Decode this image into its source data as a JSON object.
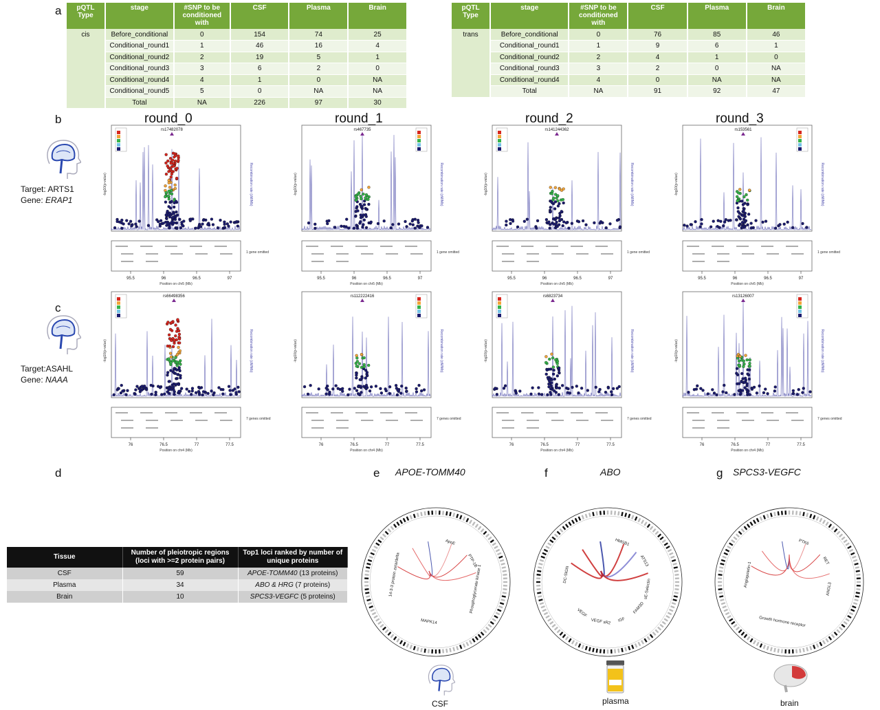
{
  "panel_letters": {
    "a": "a",
    "b": "b",
    "c": "c",
    "d": "d",
    "e": "e",
    "f": "f",
    "g": "g"
  },
  "cis_table": {
    "headers": [
      "pQTL Type",
      "stage",
      "#SNP to be conditioned with",
      "CSF",
      "Plasma",
      "Brain"
    ],
    "type_label": "cis",
    "rows": [
      [
        "Before_conditional",
        "0",
        "154",
        "74",
        "25"
      ],
      [
        "Conditional_round1",
        "1",
        "46",
        "16",
        "4"
      ],
      [
        "Conditional_round2",
        "2",
        "19",
        "5",
        "1"
      ],
      [
        "Conditional_round3",
        "3",
        "6",
        "2",
        "0"
      ],
      [
        "Conditional_round4",
        "4",
        "1",
        "0",
        "NA"
      ],
      [
        "Conditional_round5",
        "5",
        "0",
        "NA",
        "NA"
      ],
      [
        "Total",
        "NA",
        "226",
        "97",
        "30"
      ]
    ]
  },
  "trans_table": {
    "headers": [
      "pQTL Type",
      "stage",
      "#SNP to be conditioned with",
      "CSF",
      "Plasma",
      "Brain"
    ],
    "type_label": "trans",
    "rows": [
      [
        "Before_conditional",
        "0",
        "76",
        "85",
        "46"
      ],
      [
        "Conditional_round1",
        "1",
        "9",
        "6",
        "1"
      ],
      [
        "Conditional_round2",
        "2",
        "4",
        "1",
        "0"
      ],
      [
        "Conditional_round3",
        "3",
        "2",
        "0",
        "NA"
      ],
      [
        "Conditional_round4",
        "4",
        "0",
        "NA",
        "NA"
      ],
      [
        "Total",
        "NA",
        "91",
        "92",
        "47"
      ]
    ]
  },
  "rounds": [
    "round_0",
    "round_1",
    "round_2",
    "round_3"
  ],
  "row_b": {
    "target": "Target: ARTS1",
    "gene_prefix": "Gene: ",
    "gene": "ERAP1",
    "snps": [
      "rs17482078",
      "rs467735",
      "rs141244362",
      "rs153561"
    ],
    "x_label": "Position on chr5 (Mb)",
    "x_ticks": [
      "95.5",
      "96",
      "96.5",
      "97"
    ],
    "omitted": "1 gene omitted"
  },
  "row_c": {
    "target": "Target:ASAHL",
    "gene_prefix": "Gene: ",
    "gene": "NAAA",
    "snps": [
      "rs66498356",
      "rs112222416",
      "rs6823734",
      "rs13126007"
    ],
    "x_label": "Position on chr4 (Mb)",
    "x_ticks": [
      "76",
      "76.5",
      "77",
      "77.5"
    ],
    "omitted": "7 genes omitted"
  },
  "y_label": "-log10(p-value)",
  "y2_label": "Recombination rate (cM/Mb)",
  "pleio_table": {
    "headers": [
      "Tissue",
      "Number of pleiotropic regions (loci with >=2 protein pairs)",
      "Top1 loci ranked by number of unique proteins"
    ],
    "rows": [
      {
        "tissue": "CSF",
        "n": "59",
        "locus": "APOE-TOMM40",
        "count": " (13 proteins)"
      },
      {
        "tissue": "Plasma",
        "n": "34",
        "locus": "ABO & HRG",
        "count": " (7 proteins)"
      },
      {
        "tissue": "Brain",
        "n": "10",
        "locus": "SPCS3-VEGFC",
        "count": " (5 proteins)"
      }
    ]
  },
  "circos": [
    {
      "title": "APOE-TOMM40",
      "caption": "CSF",
      "labels": [
        "ApoE",
        "PTP-1B",
        "14-3-3 protein zeta/delta",
        "Phosphoglycerate kinase 1",
        "MAPK14"
      ]
    },
    {
      "title": "ABO",
      "caption": "plasma",
      "labels": [
        "HMGB1",
        "ATS13",
        "DC-SIGN",
        "sE-Selectin",
        "VEGF sR2",
        "VEGF",
        "IGF",
        "FAM3D"
      ]
    },
    {
      "title": "SPCS3-VEGFC",
      "caption": "brain",
      "labels": [
        "PTK6",
        "RET",
        "Angiopoietin-1",
        "ANGL3",
        "Growth hormone receptor"
      ]
    }
  ]
}
